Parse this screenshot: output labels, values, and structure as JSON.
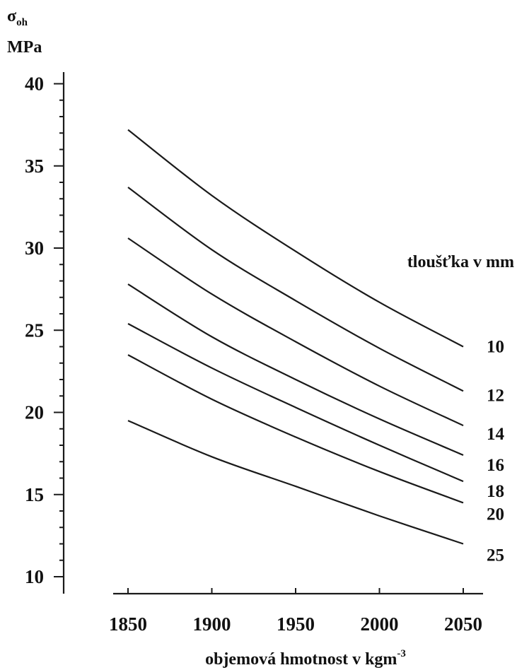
{
  "chart_data": {
    "type": "line",
    "ylabel_symbol": "σ",
    "ylabel_subscript": "oh",
    "ylabel_unit": "MPa",
    "xlabel_text": "objemová hmotnost  v  kgm",
    "xlabel_superscript": "-3",
    "legend_title": "tloušťka  v  mm",
    "xlim": [
      1845,
      2055
    ],
    "ylim": [
      10,
      40
    ],
    "x_ticks": [
      1850,
      1900,
      1950,
      2000,
      2050
    ],
    "y_ticks": [
      10,
      15,
      20,
      25,
      30,
      35,
      40
    ],
    "x_tick_labels": [
      "1850",
      "1900",
      "1950",
      "2000",
      "2050"
    ],
    "y_tick_labels": [
      "10",
      "15",
      "20",
      "25",
      "30",
      "35",
      "40"
    ],
    "x": [
      1850,
      1900,
      1950,
      2000,
      2050
    ],
    "series": [
      {
        "name": "10",
        "values": [
          37.2,
          33.2,
          29.8,
          26.7,
          24.0
        ]
      },
      {
        "name": "12",
        "values": [
          33.7,
          29.9,
          26.8,
          23.9,
          21.3
        ]
      },
      {
        "name": "14",
        "values": [
          30.6,
          27.2,
          24.3,
          21.6,
          19.2
        ]
      },
      {
        "name": "16",
        "values": [
          27.8,
          24.6,
          22.0,
          19.6,
          17.4
        ]
      },
      {
        "name": "18",
        "values": [
          25.4,
          22.7,
          20.3,
          18.0,
          15.8
        ]
      },
      {
        "name": "20",
        "values": [
          23.5,
          20.8,
          18.5,
          16.4,
          14.5
        ]
      },
      {
        "name": "25",
        "values": [
          19.5,
          17.3,
          15.5,
          13.7,
          12.0
        ]
      }
    ]
  }
}
